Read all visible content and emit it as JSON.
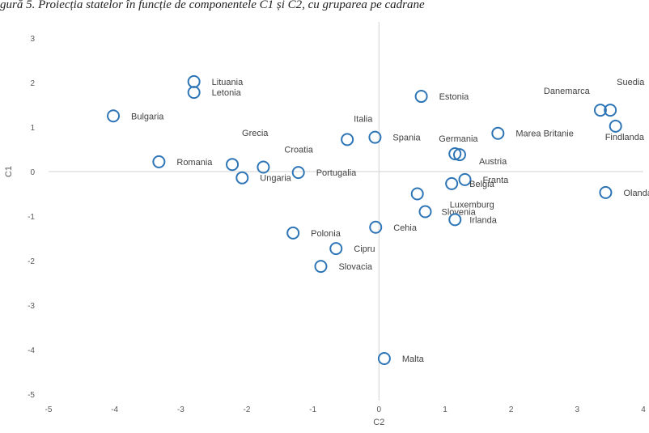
{
  "caption": "gură 5. Proiecția statelor în funcție de componentele C1 și C2, cu gruparea pe cadrane",
  "chart_data": {
    "type": "scatter",
    "title": "",
    "xlabel": "C2",
    "ylabel": "C1",
    "xlim": [
      -5,
      4
    ],
    "ylim": [
      -5,
      3
    ],
    "xticks": [
      -5,
      -4,
      -3,
      -2,
      -1,
      0,
      1,
      2,
      3,
      4
    ],
    "yticks": [
      -5,
      -4,
      -3,
      -2,
      -1,
      0,
      1,
      2,
      3
    ],
    "grid": false,
    "legend": "none",
    "marker_color": "#2e75b6",
    "axis_color": "#d9d9d9",
    "points": [
      {
        "label": "Lituania",
        "x": -2.8,
        "y": 2.02
      },
      {
        "label": "Letonia",
        "x": -2.8,
        "y": 1.78
      },
      {
        "label": "Bulgaria",
        "x": -4.02,
        "y": 1.25
      },
      {
        "label": "Romania",
        "x": -3.33,
        "y": 0.22
      },
      {
        "label": "Grecia",
        "x": -2.22,
        "y": 0.16
      },
      {
        "label": "Croatia",
        "x": -1.75,
        "y": 0.1
      },
      {
        "label": "Ungaria",
        "x": -2.07,
        "y": -0.14
      },
      {
        "label": "Portugalia",
        "x": -1.22,
        "y": -0.02
      },
      {
        "label": "Italia",
        "x": -0.48,
        "y": 0.72
      },
      {
        "label": "Spania",
        "x": -0.06,
        "y": 0.77
      },
      {
        "label": "Estonia",
        "x": 0.64,
        "y": 1.69
      },
      {
        "label": "Germania",
        "x": 1.15,
        "y": 0.4
      },
      {
        "label": "Austria",
        "x": 1.22,
        "y": 0.38
      },
      {
        "label": "Marea Britanie",
        "x": 1.8,
        "y": 0.86
      },
      {
        "label": "Danemarca",
        "x": 3.35,
        "y": 1.38
      },
      {
        "label": "Suedia",
        "x": 3.5,
        "y": 1.38
      },
      {
        "label": "Findlanda",
        "x": 3.58,
        "y": 1.02
      },
      {
        "label": "Franta",
        "x": 1.3,
        "y": -0.18
      },
      {
        "label": "Belgia",
        "x": 1.1,
        "y": -0.27
      },
      {
        "label": "Luxemburg",
        "x": 0.58,
        "y": -0.5
      },
      {
        "label": "Olanda",
        "x": 3.43,
        "y": -0.47
      },
      {
        "label": "Slovenia",
        "x": 0.7,
        "y": -0.9
      },
      {
        "label": "Irlanda",
        "x": 1.15,
        "y": -1.08
      },
      {
        "label": "Cehia",
        "x": -0.05,
        "y": -1.25
      },
      {
        "label": "Polonia",
        "x": -1.3,
        "y": -1.38
      },
      {
        "label": "Cipru",
        "x": -0.65,
        "y": -1.73
      },
      {
        "label": "Slovacia",
        "x": -0.88,
        "y": -2.13
      },
      {
        "label": "Malta",
        "x": 0.08,
        "y": -4.2
      }
    ]
  }
}
